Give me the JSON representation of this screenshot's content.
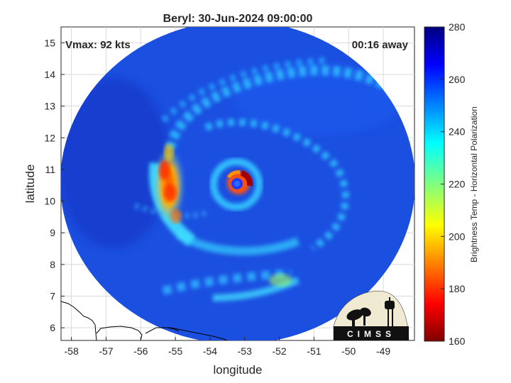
{
  "title": "Beryl: 30-Jun-2024 09:00:00",
  "vmax_label": "Vmax: 92 kts",
  "time_away_label": "00:16 away",
  "axes": {
    "xlabel": "longitude",
    "ylabel": "latitude",
    "x_ticks": [
      "-58",
      "-57",
      "-56",
      "-55",
      "-54",
      "-53",
      "-52",
      "-51",
      "-50",
      "-49"
    ],
    "y_ticks": [
      "6",
      "7",
      "8",
      "9",
      "10",
      "11",
      "12",
      "13",
      "14",
      "15"
    ],
    "xlim": [
      -58.3,
      -48.1
    ],
    "ylim": [
      5.6,
      15.5
    ],
    "grid": true
  },
  "colorbar": {
    "label": "Brightness Temp - Horizontal Polarization",
    "ticks": [
      "280",
      "260",
      "240",
      "220",
      "200",
      "180",
      "160"
    ],
    "range": [
      160,
      280
    ],
    "colormap": "jet"
  },
  "storm": {
    "name": "Beryl",
    "eye_lon": -53.1,
    "eye_lat": 10.6
  },
  "logo": {
    "text": "CIMSS"
  },
  "colors": {
    "background_ocean": "#1b4fe0",
    "eye": "#1c3cff",
    "eyewall": "#c10000",
    "coastline": "#000000",
    "grid": "#d9d9d9"
  }
}
